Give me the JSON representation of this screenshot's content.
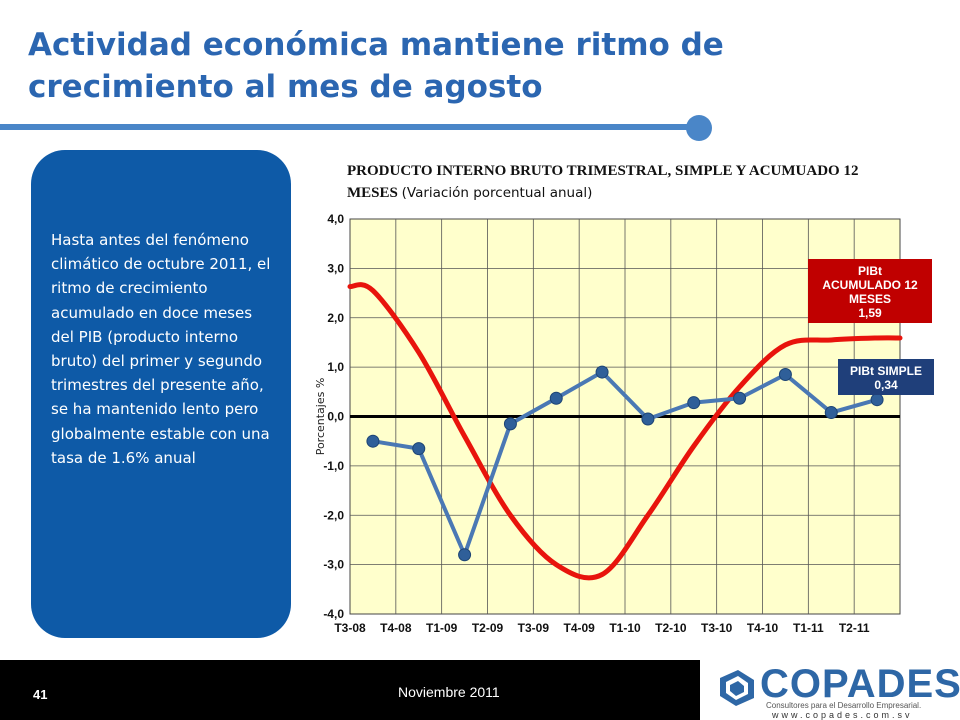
{
  "slide": {
    "title": "Actividad económica mantiene ritmo de crecimiento al mes de agosto",
    "side_text": "Hasta antes del fenómeno climático de octubre 2011, el ritmo de crecimiento acumulado en doce meses del PIB (producto interno bruto) del primer y segundo trimestres del presente año, se ha mantenido lento pero globalmente estable con una tasa de 1.6% anual",
    "colors": {
      "title": "#2b66b1",
      "side_box": "#0e5aa7",
      "plot_bg": "#ffffcc"
    }
  },
  "chart_title": {
    "main": "PRODUCTO INTERNO BRUTO TRIMESTRAL, SIMPLE Y ACUMUADO 12 MESES",
    "subtitle": "(Variación porcentual anual)"
  },
  "chart_data": {
    "type": "line",
    "categories": [
      "T3-08",
      "T4-08",
      "T1-09",
      "T2-09",
      "T3-09",
      "T4-09",
      "T1-10",
      "T2-10",
      "T3-10",
      "T4-10",
      "T1-11",
      "T2-11"
    ],
    "ylabel": "Porcentajes %",
    "ylim": [
      -4,
      4
    ],
    "yticks": [
      "4,0",
      "3,0",
      "2,0",
      "1,0",
      "0,0",
      "-1,0",
      "-2,0",
      "-3,0",
      "-4,0"
    ],
    "grid": true,
    "series": [
      {
        "name": "PIBt ACUMULADO 12 MESES",
        "color": "#e8140c",
        "smooth": true,
        "values": [
          2.55,
          1.3,
          -0.4,
          -2.0,
          -3.0,
          -3.2,
          -2.0,
          -0.6,
          0.6,
          1.45,
          1.55,
          1.59
        ],
        "label": [
          "PIBt",
          "ACUMULADO 12",
          "MESES",
          "1,59"
        ]
      },
      {
        "name": "PIBt SIMPLE",
        "color": "#4a78b4",
        "smooth": false,
        "values": [
          -0.5,
          -0.65,
          -2.8,
          -0.15,
          0.37,
          0.9,
          -0.05,
          0.28,
          0.37,
          0.85,
          0.08,
          0.34
        ],
        "label": [
          "PIBt SIMPLE",
          "0,34"
        ]
      }
    ]
  },
  "footer": {
    "page": "41",
    "date": "Noviembre 2011",
    "logo_name": "COPADES",
    "logo_tagline": "Consultores para el Desarrollo Empresarial.",
    "logo_url": "www.copades.com.sv"
  }
}
